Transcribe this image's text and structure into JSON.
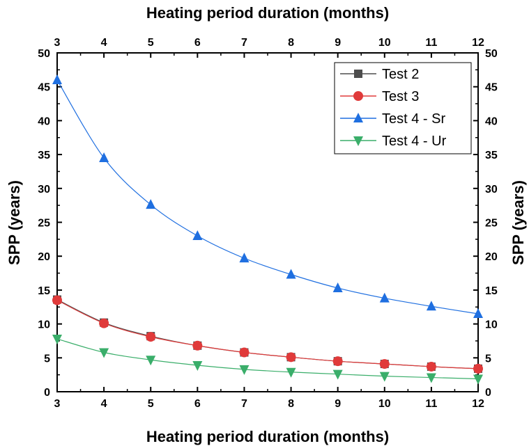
{
  "chart_data": {
    "type": "line",
    "xlabel": "Heating period duration (months)",
    "xlabel_top": "Heating period duration (months)",
    "ylabel": "SPP (years)",
    "ylabel_right": "SPP (years)",
    "xlim": [
      3,
      12
    ],
    "ylim": [
      0,
      50
    ],
    "x_ticks": [
      3,
      4,
      5,
      6,
      7,
      8,
      9,
      10,
      11,
      12
    ],
    "y_ticks": [
      0,
      5,
      10,
      15,
      20,
      25,
      30,
      35,
      40,
      45,
      50
    ],
    "grid": false,
    "legend_position": "top-right",
    "x": [
      3,
      4,
      5,
      6,
      7,
      8,
      9,
      10,
      11,
      12
    ],
    "series": [
      {
        "name": "Test 2",
        "color": "#4d4d4d",
        "marker": "square",
        "values": [
          13.6,
          10.2,
          8.2,
          6.8,
          5.8,
          5.1,
          4.5,
          4.1,
          3.7,
          3.4
        ]
      },
      {
        "name": "Test 3",
        "color": "#e03a3a",
        "marker": "circle",
        "values": [
          13.5,
          10.1,
          8.1,
          6.8,
          5.8,
          5.1,
          4.5,
          4.1,
          3.7,
          3.4
        ]
      },
      {
        "name": "Test 4 - Sr",
        "color": "#1f6fe0",
        "marker": "triangle-up",
        "values": [
          46.0,
          34.5,
          27.6,
          23.0,
          19.7,
          17.3,
          15.3,
          13.8,
          12.6,
          11.5
        ]
      },
      {
        "name": "Test 4 - Ur",
        "color": "#3aae6a",
        "marker": "triangle-down",
        "values": [
          7.8,
          5.8,
          4.7,
          3.9,
          3.3,
          2.9,
          2.6,
          2.3,
          2.1,
          1.9
        ]
      }
    ]
  }
}
